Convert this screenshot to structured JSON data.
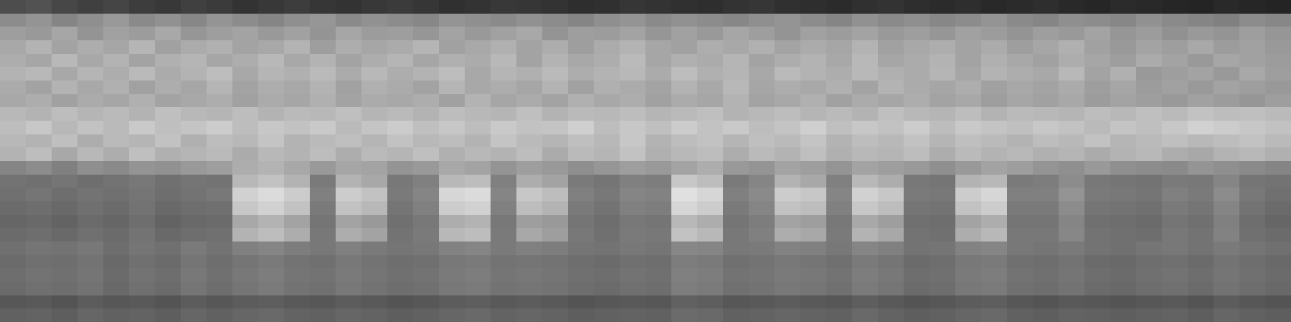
{
  "chart_data": {
    "type": "heatmap",
    "tick_labels": false,
    "grid": false,
    "zlim": [
      0,
      100
    ],
    "cells": [
      [
        30,
        32,
        28,
        25,
        27,
        24,
        22,
        25,
        23,
        20,
        22,
        24,
        21,
        20,
        22,
        23,
        21,
        19,
        20,
        22,
        21,
        20,
        18,
        19,
        21,
        20,
        19,
        18,
        20,
        21,
        19,
        18,
        17,
        19,
        20,
        18,
        17,
        18,
        16,
        17,
        18,
        16,
        15,
        17,
        16,
        15,
        14,
        16,
        15,
        14
      ],
      [
        55,
        58,
        52,
        56,
        60,
        54,
        57,
        53,
        58,
        55,
        52,
        56,
        59,
        54,
        57,
        55,
        53,
        58,
        56,
        54,
        57,
        55,
        52,
        56,
        58,
        54,
        57,
        55,
        53,
        56,
        58,
        55,
        52,
        57,
        54,
        56,
        53,
        55,
        58,
        54,
        52,
        56,
        55,
        53,
        57,
        54,
        52,
        50,
        55,
        53
      ],
      [
        62,
        60,
        65,
        58,
        63,
        61,
        66,
        59,
        62,
        64,
        60,
        63,
        58,
        65,
        61,
        62,
        59,
        64,
        60,
        63,
        66,
        58,
        62,
        61,
        64,
        59,
        63,
        60,
        65,
        62,
        58,
        63,
        61,
        64,
        60,
        62,
        59,
        63,
        61,
        58,
        62,
        60,
        64,
        59,
        61,
        57,
        60,
        58,
        62,
        59
      ],
      [
        66,
        70,
        64,
        68,
        65,
        71,
        63,
        67,
        69,
        64,
        66,
        70,
        62,
        68,
        65,
        67,
        71,
        63,
        66,
        69,
        64,
        68,
        62,
        67,
        70,
        65,
        63,
        68,
        66,
        69,
        64,
        67,
        65,
        70,
        63,
        66,
        68,
        64,
        67,
        62,
        65,
        69,
        63,
        60,
        64,
        62,
        66,
        61,
        63,
        60
      ],
      [
        68,
        65,
        72,
        66,
        70,
        64,
        69,
        71,
        65,
        68,
        72,
        66,
        70,
        64,
        68,
        71,
        65,
        69,
        67,
        72,
        64,
        70,
        66,
        68,
        73,
        65,
        69,
        67,
        71,
        64,
        68,
        70,
        66,
        72,
        65,
        67,
        70,
        64,
        69,
        66,
        63,
        68,
        65,
        62,
        67,
        64,
        60,
        65,
        63,
        61
      ],
      [
        70,
        72,
        66,
        71,
        68,
        73,
        67,
        70,
        74,
        66,
        71,
        69,
        73,
        67,
        72,
        68,
        70,
        74,
        66,
        71,
        69,
        73,
        68,
        70,
        72,
        67,
        74,
        69,
        71,
        66,
        73,
        70,
        68,
        72,
        69,
        67,
        71,
        65,
        70,
        68,
        66,
        72,
        64,
        69,
        60,
        62,
        64,
        60,
        66,
        62
      ],
      [
        67,
        64,
        70,
        66,
        69,
        63,
        68,
        65,
        71,
        64,
        68,
        66,
        70,
        63,
        69,
        67,
        64,
        71,
        66,
        68,
        65,
        70,
        63,
        69,
        67,
        64,
        70,
        66,
        72,
        65,
        68,
        66,
        69,
        64,
        70,
        67,
        65,
        68,
        63,
        66,
        64,
        67,
        62,
        65,
        61,
        63,
        60,
        64,
        62,
        60
      ],
      [
        66,
        68,
        63,
        67,
        65,
        69,
        64,
        66,
        68,
        63,
        67,
        65,
        69,
        64,
        67,
        66,
        68,
        63,
        70,
        65,
        67,
        64,
        69,
        66,
        68,
        63,
        67,
        65,
        70,
        64,
        66,
        69,
        63,
        67,
        65,
        68,
        64,
        66,
        62,
        65,
        63,
        66,
        61,
        64,
        62,
        60,
        63,
        61,
        59,
        62
      ],
      [
        72,
        70,
        74,
        71,
        73,
        70,
        75,
        72,
        71,
        74,
        70,
        73,
        72,
        75,
        71,
        73,
        70,
        74,
        72,
        71,
        75,
        70,
        73,
        72,
        74,
        71,
        73,
        75,
        70,
        72,
        74,
        71,
        73,
        70,
        75,
        72,
        71,
        74,
        70,
        73,
        72,
        71,
        74,
        72,
        75,
        73,
        76,
        74,
        75,
        73
      ],
      [
        74,
        78,
        72,
        76,
        73,
        79,
        75,
        77,
        80,
        74,
        78,
        76,
        79,
        73,
        77,
        80,
        75,
        78,
        74,
        79,
        76,
        77,
        81,
        74,
        78,
        75,
        80,
        76,
        79,
        74,
        77,
        81,
        75,
        78,
        76,
        80,
        74,
        79,
        77,
        75,
        78,
        76,
        73,
        77,
        75,
        78,
        82,
        80,
        78,
        76
      ],
      [
        72,
        70,
        75,
        68,
        73,
        71,
        76,
        69,
        74,
        72,
        77,
        70,
        73,
        75,
        71,
        76,
        72,
        74,
        70,
        77,
        73,
        71,
        75,
        72,
        78,
        70,
        74,
        76,
        71,
        75,
        73,
        77,
        70,
        74,
        72,
        76,
        71,
        75,
        73,
        70,
        74,
        72,
        76,
        71,
        73,
        75,
        72,
        74,
        76,
        73
      ],
      [
        70,
        74,
        66,
        72,
        68,
        75,
        69,
        71,
        73,
        67,
        72,
        70,
        74,
        68,
        73,
        71,
        75,
        69,
        72,
        70,
        74,
        67,
        73,
        71,
        76,
        69,
        72,
        74,
        68,
        73,
        70,
        75,
        69,
        72,
        71,
        74,
        68,
        73,
        70,
        72,
        69,
        71,
        67,
        70,
        72,
        68,
        66,
        70,
        72,
        69
      ],
      [
        52,
        55,
        50,
        56,
        54,
        58,
        57,
        60,
        62,
        68,
        70,
        66,
        60,
        65,
        64,
        58,
        60,
        66,
        64,
        58,
        62,
        60,
        56,
        59,
        62,
        60,
        64,
        68,
        60,
        58,
        64,
        62,
        58,
        64,
        62,
        60,
        56,
        60,
        64,
        62,
        58,
        56,
        60,
        56,
        55,
        54,
        58,
        56,
        54,
        52
      ],
      [
        45,
        44,
        46,
        43,
        45,
        47,
        44,
        46,
        45,
        72,
        76,
        70,
        48,
        70,
        66,
        47,
        50,
        72,
        74,
        50,
        68,
        64,
        48,
        46,
        50,
        49,
        78,
        74,
        48,
        52,
        70,
        66,
        50,
        72,
        68,
        47,
        46,
        70,
        72,
        48,
        49,
        55,
        47,
        46,
        45,
        48,
        47,
        52,
        46,
        45
      ],
      [
        44,
        46,
        43,
        45,
        44,
        46,
        43,
        45,
        47,
        82,
        86,
        80,
        50,
        80,
        76,
        48,
        52,
        84,
        86,
        52,
        78,
        74,
        50,
        47,
        52,
        51,
        88,
        84,
        50,
        54,
        80,
        78,
        52,
        82,
        78,
        48,
        47,
        80,
        84,
        50,
        50,
        58,
        48,
        47,
        46,
        50,
        48,
        55,
        47,
        44
      ],
      [
        42,
        43,
        41,
        44,
        42,
        45,
        41,
        43,
        44,
        78,
        82,
        76,
        48,
        76,
        72,
        46,
        50,
        80,
        82,
        50,
        74,
        70,
        48,
        45,
        50,
        49,
        84,
        80,
        48,
        52,
        76,
        74,
        50,
        78,
        74,
        46,
        45,
        76,
        80,
        48,
        48,
        55,
        46,
        45,
        44,
        48,
        46,
        52,
        45,
        42
      ],
      [
        40,
        41,
        39,
        42,
        40,
        43,
        39,
        41,
        42,
        66,
        70,
        64,
        46,
        64,
        60,
        44,
        47,
        68,
        70,
        47,
        62,
        60,
        46,
        43,
        47,
        46,
        72,
        68,
        46,
        49,
        64,
        62,
        47,
        66,
        62,
        44,
        43,
        64,
        68,
        46,
        46,
        52,
        44,
        43,
        42,
        46,
        44,
        50,
        43,
        40
      ],
      [
        42,
        43,
        41,
        44,
        42,
        45,
        41,
        43,
        44,
        70,
        74,
        68,
        47,
        68,
        64,
        45,
        48,
        72,
        74,
        48,
        66,
        62,
        47,
        44,
        48,
        47,
        76,
        72,
        47,
        50,
        68,
        66,
        48,
        70,
        66,
        45,
        44,
        68,
        72,
        47,
        47,
        53,
        45,
        44,
        43,
        47,
        45,
        51,
        44,
        42
      ],
      [
        44,
        46,
        45,
        47,
        43,
        46,
        44,
        48,
        45,
        50,
        52,
        49,
        47,
        50,
        48,
        46,
        47,
        51,
        52,
        48,
        50,
        49,
        46,
        45,
        47,
        46,
        53,
        52,
        47,
        48,
        51,
        50,
        47,
        52,
        50,
        45,
        46,
        51,
        52,
        47,
        46,
        48,
        45,
        44,
        46,
        47,
        45,
        48,
        46,
        44
      ],
      [
        42,
        44,
        43,
        45,
        41,
        44,
        42,
        46,
        43,
        46,
        48,
        45,
        44,
        47,
        45,
        43,
        44,
        47,
        48,
        45,
        46,
        45,
        43,
        42,
        44,
        43,
        49,
        48,
        44,
        45,
        47,
        46,
        44,
        48,
        46,
        42,
        43,
        47,
        48,
        44,
        43,
        45,
        42,
        41,
        43,
        44,
        42,
        45,
        43,
        41
      ],
      [
        43,
        45,
        44,
        46,
        42,
        45,
        43,
        47,
        44,
        47,
        49,
        46,
        45,
        48,
        46,
        44,
        45,
        48,
        49,
        46,
        47,
        46,
        44,
        43,
        45,
        44,
        50,
        49,
        45,
        46,
        48,
        47,
        45,
        49,
        47,
        43,
        44,
        48,
        49,
        45,
        44,
        46,
        43,
        42,
        44,
        45,
        43,
        46,
        44,
        42
      ],
      [
        42,
        44,
        43,
        45,
        41,
        44,
        42,
        46,
        43,
        46,
        48,
        45,
        44,
        47,
        45,
        43,
        44,
        47,
        48,
        45,
        46,
        45,
        43,
        42,
        44,
        43,
        49,
        48,
        44,
        45,
        47,
        46,
        44,
        48,
        46,
        42,
        43,
        47,
        48,
        44,
        43,
        45,
        42,
        41,
        43,
        44,
        42,
        45,
        43,
        41
      ],
      [
        34,
        35,
        33,
        36,
        34,
        35,
        33,
        36,
        34,
        36,
        37,
        35,
        34,
        36,
        35,
        33,
        34,
        36,
        37,
        35,
        36,
        35,
        33,
        34,
        35,
        34,
        38,
        37,
        34,
        35,
        36,
        35,
        34,
        37,
        35,
        33,
        34,
        36,
        37,
        34,
        33,
        35,
        34,
        33,
        34,
        35,
        33,
        36,
        34,
        33
      ],
      [
        38,
        39,
        37,
        40,
        38,
        39,
        37,
        40,
        38,
        40,
        41,
        39,
        38,
        40,
        39,
        37,
        38,
        40,
        41,
        39,
        40,
        39,
        37,
        38,
        39,
        38,
        42,
        41,
        38,
        39,
        40,
        39,
        38,
        41,
        39,
        37,
        38,
        40,
        41,
        38,
        37,
        39,
        38,
        37,
        38,
        39,
        37,
        40,
        38,
        37
      ]
    ]
  }
}
